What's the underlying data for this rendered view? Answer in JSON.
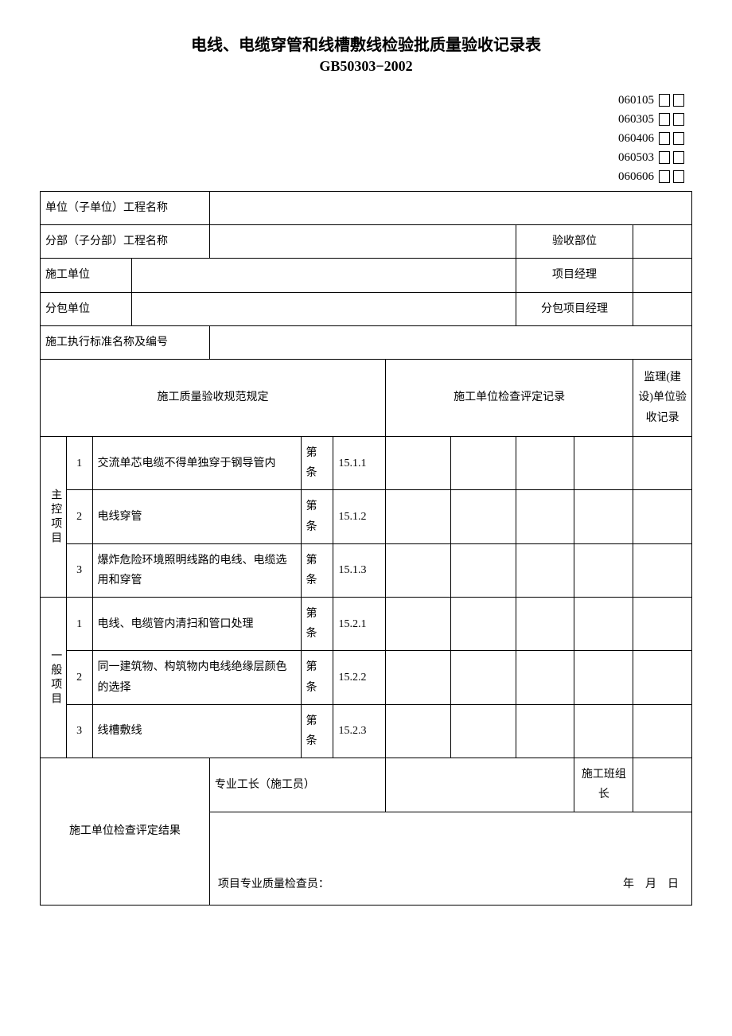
{
  "title": "电线、电缆穿管和线槽敷线检验批质量验收记录表",
  "subtitle": "GB50303−2002",
  "codes": [
    "060105",
    "060305",
    "060406",
    "060503",
    "060606"
  ],
  "header": {
    "unit_project_label": "单位（子单位）工程名称",
    "unit_project_value": "",
    "subpart_label": "分部（子分部）工程名称",
    "subpart_value": "",
    "accept_dept_label": "验收部位",
    "accept_dept_value": "",
    "construct_unit_label": "施工单位",
    "construct_unit_value": "",
    "pm_label": "项目经理",
    "pm_value": "",
    "subcontract_label": "分包单位",
    "subcontract_value": "",
    "sub_pm_label": "分包项目经理",
    "sub_pm_value": "",
    "standard_label": "施工执行标准名称及编号",
    "standard_value": ""
  },
  "section_headers": {
    "spec": "施工质量验收规范规定",
    "self_check": "施工单位检查评定记录",
    "supervise": "监理(建设)单位验收记录"
  },
  "groups": [
    {
      "label": "主控项目",
      "rows": [
        {
          "n": "1",
          "item": "交流单芯电缆不得单独穿于钢导管内",
          "ref": "15.1.1"
        },
        {
          "n": "2",
          "item": "电线穿管",
          "ref": "15.1.2"
        },
        {
          "n": "3",
          "item": "爆炸危险环境照明线路的电线、电缆选用和穿管",
          "ref": "15.1.3"
        }
      ]
    },
    {
      "label": "一般项目",
      "rows": [
        {
          "n": "1",
          "item": "电线、电缆管内清扫和管口处理",
          "ref": "15.2.1"
        },
        {
          "n": "2",
          "item": "同一建筑物、构筑物内电线绝缘层颜色的选择",
          "ref": "15.2.2"
        },
        {
          "n": "3",
          "item": "线槽敷线",
          "ref": "15.2.3"
        }
      ]
    }
  ],
  "article_prefix": "第",
  "article_suffix": "条",
  "footer": {
    "result_label": "施工单位检查评定结果",
    "foreman_label": "专业工长（施工员）",
    "foreman_value": "",
    "team_label": "施工班组长",
    "team_value": "",
    "inspector_label": "项目专业质量检查员：",
    "date_text": "年　月　日"
  }
}
